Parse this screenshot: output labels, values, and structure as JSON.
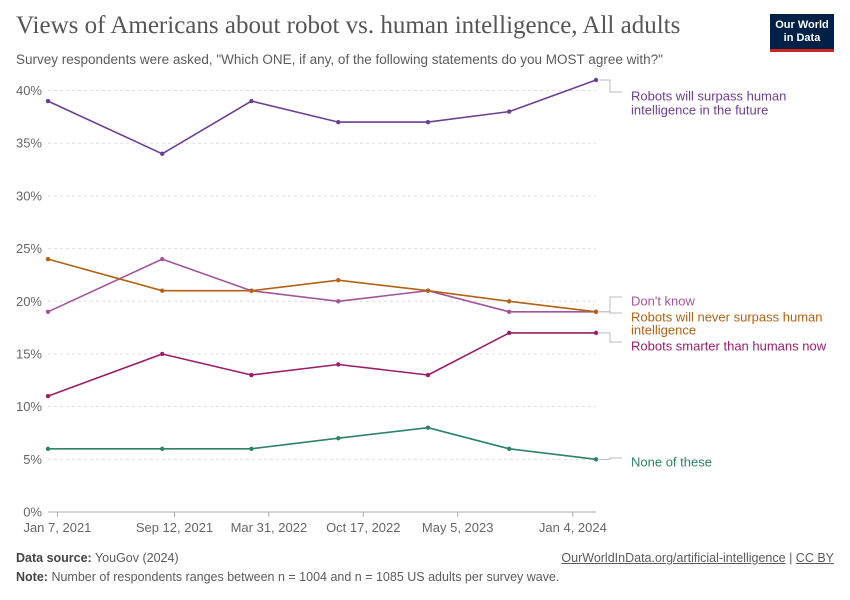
{
  "header": {
    "title": "Views of Americans about robot vs. human intelligence, All adults",
    "subtitle": "Survey respondents were asked, \"Which ONE, if any, of the following statements do you MOST agree with?\"",
    "logo_line1": "Our World",
    "logo_line2": "in Data",
    "logo_color": "#002147",
    "logo_accent": "#ce261e"
  },
  "footer": {
    "source_label": "Data source:",
    "source_value": "YouGov (2024)",
    "note_label": "Note:",
    "note_value": "Number of respondents ranges between n = 1004 and n = 1085 US adults per survey wave.",
    "link_text": "OurWorldInData.org/artificial-intelligence",
    "separator": "|",
    "license": "CC BY"
  },
  "chart_data": {
    "type": "line",
    "title": "Views of Americans about robot vs. human intelligence, All adults",
    "x_tick_labels": [
      "Jan 7, 2021",
      "Sep 12, 2021",
      "Mar 31, 2022",
      "Oct 17, 2022",
      "May 5, 2023",
      "Jan 4, 2024"
    ],
    "x": [
      "2020-12-18",
      "2021-08-17",
      "2022-02-22",
      "2022-08-25",
      "2023-03-03",
      "2023-08-22",
      "2024-02-22"
    ],
    "y_ticks": [
      0,
      5,
      10,
      15,
      20,
      25,
      30,
      35,
      40
    ],
    "y_tick_labels": [
      "0%",
      "5%",
      "10%",
      "15%",
      "20%",
      "25%",
      "30%",
      "35%",
      "40%"
    ],
    "ylim": [
      0,
      41
    ],
    "grid": true,
    "legend": "right, labels at line ends",
    "series": [
      {
        "name": "Robots will surpass human intelligence in the future",
        "label_lines": [
          "Robots will surpass human",
          "intelligence in the future"
        ],
        "color": "#6d3e91",
        "values": [
          39,
          34,
          39,
          37,
          37,
          38,
          41
        ]
      },
      {
        "name": "Don't know",
        "label_lines": [
          "Don't know"
        ],
        "color": "#a2559c",
        "values": [
          19,
          24,
          21,
          20,
          21,
          19,
          19
        ]
      },
      {
        "name": "Robots will never surpass human intelligence",
        "label_lines": [
          "Robots will never surpass human",
          "intelligence"
        ],
        "color": "#b16214",
        "values": [
          24,
          21,
          21,
          22,
          21,
          20,
          19
        ]
      },
      {
        "name": "Robots smarter than humans now",
        "label_lines": [
          "Robots smarter than humans now"
        ],
        "color": "#9a1e6a",
        "values": [
          11,
          15,
          13,
          14,
          13,
          17,
          17
        ]
      },
      {
        "name": "None of these",
        "label_lines": [
          "None of these"
        ],
        "color": "#2c8465",
        "values": [
          6,
          6,
          6,
          7,
          8,
          6,
          5
        ]
      }
    ]
  }
}
